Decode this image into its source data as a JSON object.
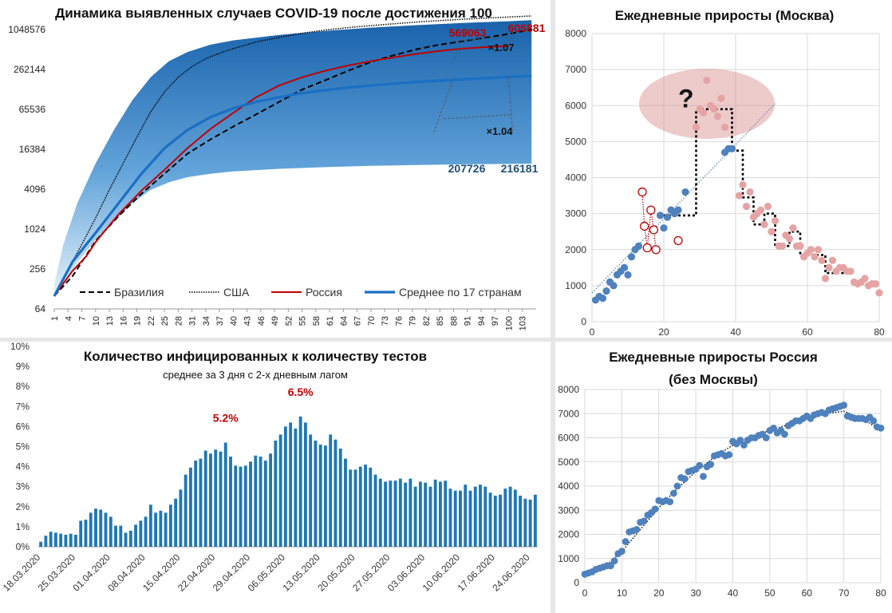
{
  "chart_data": [
    {
      "type": "line",
      "title": "Динамика выявленных случаев COVID-19 после достижения 100",
      "scale": "log2",
      "y_ticks": [
        64,
        256,
        1024,
        4096,
        16384,
        65536,
        262144,
        1048576
      ],
      "y_tick_labels": [
        "64",
        "256",
        "1024",
        "4096",
        "16384",
        "65536",
        "262144",
        "1048576"
      ],
      "x_tick_labels": [
        "1",
        "4",
        "7",
        "10",
        "13",
        "16",
        "19",
        "22",
        "25",
        "28",
        "31",
        "34",
        "37",
        "40",
        "43",
        "46",
        "49",
        "52",
        "55",
        "58",
        "61",
        "64",
        "67",
        "70",
        "73",
        "76",
        "79",
        "82",
        "85",
        "88",
        "91",
        "94",
        "97",
        "100",
        "103"
      ],
      "x_range": [
        1,
        105
      ],
      "series": [
        {
          "name": "Бразилия",
          "style": "dashed",
          "color": "#000000",
          "x": [
            1,
            5,
            10,
            15,
            20,
            25,
            30,
            35,
            40,
            45,
            50,
            55,
            60,
            65,
            70,
            75,
            80,
            85,
            90,
            95,
            100,
            105
          ],
          "y": [
            100,
            200,
            680,
            1600,
            3500,
            7000,
            14000,
            23000,
            36000,
            55000,
            85000,
            130000,
            180000,
            250000,
            340000,
            430000,
            530000,
            620000,
            700000,
            790000,
            900000,
            1050000
          ]
        },
        {
          "name": "США",
          "style": "dotted",
          "color": "#000000",
          "x": [
            1,
            4,
            7,
            10,
            13,
            16,
            19,
            22,
            25,
            28,
            31,
            34,
            37,
            40,
            45,
            50,
            55,
            60,
            65,
            70,
            75,
            80,
            85,
            90,
            95,
            100,
            105
          ],
          "y": [
            100,
            250,
            600,
            1500,
            4000,
            10000,
            25000,
            60000,
            120000,
            200000,
            290000,
            380000,
            460000,
            540000,
            680000,
            800000,
            920000,
            1030000,
            1120000,
            1200000,
            1280000,
            1360000,
            1430000,
            1500000,
            1560000,
            1620000,
            1680000
          ]
        },
        {
          "name": "Россия",
          "style": "solid",
          "color": "#c00000",
          "x": [
            1,
            5,
            8,
            10,
            15,
            20,
            25,
            30,
            35,
            40,
            45,
            50,
            55,
            60,
            65,
            70,
            75,
            80,
            85,
            90,
            95,
            100
          ],
          "y": [
            100,
            240,
            400,
            650,
            1700,
            3900,
            8000,
            17000,
            33000,
            58000,
            100000,
            150000,
            200000,
            250000,
            300000,
            350000,
            400000,
            450000,
            500000,
            540000,
            570000,
            590000
          ]
        },
        {
          "name": "Среднее по 17 странам",
          "style": "solid-thick",
          "color": "#1a6fc4",
          "x": [
            1,
            5,
            10,
            15,
            20,
            25,
            30,
            35,
            40,
            45,
            50,
            55,
            60,
            65,
            70,
            75,
            80,
            85,
            90,
            95,
            100,
            105
          ],
          "y": [
            100,
            330,
            900,
            2500,
            7000,
            17000,
            32000,
            50000,
            68000,
            85000,
            100000,
            115000,
            128000,
            140000,
            150000,
            160000,
            170000,
            178000,
            186000,
            194000,
            202000,
            210000
          ]
        }
      ],
      "band": {
        "x": [
          1,
          3,
          6,
          10,
          14,
          18,
          22,
          26,
          30,
          35,
          40,
          50,
          60,
          70,
          80,
          90,
          100,
          105
        ],
        "upper": [
          150,
          600,
          2500,
          10000,
          32000,
          90000,
          200000,
          350000,
          480000,
          620000,
          720000,
          870000,
          1000000,
          1120000,
          1220000,
          1320000,
          1400000,
          1450000
        ],
        "lower": [
          100,
          150,
          320,
          700,
          1300,
          2500,
          4000,
          5200,
          6200,
          7000,
          7600,
          8300,
          8800,
          9200,
          9500,
          9700,
          9850,
          9950
        ]
      },
      "annotations": {
        "ru_left": "569063",
        "ru_right": "606881",
        "ru_ratio": "×1.07",
        "avg_left": "207726",
        "avg_right": "216181",
        "avg_ratio": "×1.04"
      }
    },
    {
      "type": "scatter",
      "title": "Ежедневные приросты (Москва)",
      "xlim": [
        0,
        80
      ],
      "ylim": [
        0,
        8000
      ],
      "x_ticks": [
        0,
        20,
        40,
        60,
        80
      ],
      "y_ticks": [
        0,
        1000,
        2000,
        3000,
        4000,
        5000,
        6000,
        7000,
        8000
      ],
      "question_mark": "?",
      "series": [
        {
          "name": "",
          "color": "#4f81bd",
          "x": [
            1,
            2,
            3,
            4,
            5,
            6,
            7,
            8,
            9,
            10,
            11,
            12,
            13,
            19,
            20,
            21,
            22,
            23,
            24,
            26,
            37,
            38,
            39
          ],
          "y": [
            600,
            700,
            650,
            850,
            1100,
            1000,
            1300,
            1400,
            1500,
            1300,
            1800,
            2000,
            2100,
            2950,
            2600,
            2900,
            3100,
            3000,
            3100,
            3600,
            4700,
            4800,
            4800
          ]
        },
        {
          "name": "",
          "color": "#e6a3a3",
          "x": [
            29,
            30,
            31,
            32,
            33,
            34,
            35,
            36,
            37,
            41,
            42,
            43,
            44,
            45,
            46,
            47,
            48,
            49,
            50,
            51,
            52,
            53,
            54,
            55,
            56,
            57,
            58,
            59,
            60,
            61,
            62,
            63,
            64,
            65,
            66,
            67,
            68,
            69,
            70,
            71,
            72,
            73,
            74,
            75,
            76,
            77,
            78,
            79,
            80
          ],
          "y": [
            5400,
            5900,
            5800,
            6700,
            6000,
            5900,
            5700,
            6200,
            5400,
            3500,
            3800,
            3200,
            3600,
            2900,
            3000,
            3100,
            2700,
            3200,
            2500,
            2800,
            2100,
            2100,
            2400,
            2300,
            2600,
            2100,
            2100,
            1800,
            1900,
            2000,
            1800,
            2000,
            1700,
            1200,
            1500,
            1700,
            1400,
            1500,
            1500,
            1400,
            1400,
            1100,
            1050,
            1100,
            1200,
            1000,
            1050,
            1050,
            800
          ]
        },
        {
          "name": "",
          "color": "#c00000",
          "hollow": true,
          "x": [
            14,
            14.6,
            15.4,
            16.4,
            17.2,
            17.8,
            24
          ],
          "y": [
            3600,
            2650,
            2050,
            3100,
            2550,
            2000,
            2250
          ]
        }
      ],
      "step_trend": {
        "x": [
          20,
          29,
          29,
          39,
          39,
          42,
          42,
          45,
          45,
          48,
          48,
          51,
          51,
          55,
          55,
          58,
          58,
          65,
          65,
          72,
          72
        ],
        "y": [
          2950,
          2950,
          5900,
          5900,
          4750,
          4750,
          3450,
          3450,
          2700,
          2700,
          3000,
          3000,
          2100,
          2100,
          2500,
          2500,
          1850,
          1850,
          1350,
          1350,
          1350
        ]
      },
      "linear_trend": {
        "x": [
          0,
          51
        ],
        "y": [
          800,
          6050
        ]
      }
    },
    {
      "type": "bar",
      "title": "Количество инфицированных к количеству тестов",
      "subtitle": "среднее за 3 дня с 2-х дневным лагом",
      "ylim": [
        0,
        10
      ],
      "y_tick_labels": [
        "0%",
        "1%",
        "2%",
        "3%",
        "4%",
        "5%",
        "6%",
        "7%",
        "8%",
        "9%",
        "10%"
      ],
      "x_tick_labels": [
        "18.03.2020",
        "25.03.2020",
        "01.04.2020",
        "08.04.2020",
        "15.04.2020",
        "22.04.2020",
        "29.04.2020",
        "06.05.2020",
        "13.05.2020",
        "20.05.2020",
        "27.05.2020",
        "03.06.2020",
        "10.06.2020",
        "17.06.2020",
        "24.06.2020"
      ],
      "values": [
        0.25,
        0.55,
        0.75,
        0.7,
        0.65,
        0.6,
        0.65,
        0.6,
        1.3,
        1.35,
        1.7,
        1.9,
        1.85,
        1.7,
        1.5,
        1.05,
        1.05,
        0.7,
        0.8,
        1.1,
        1.3,
        1.5,
        2.1,
        1.7,
        1.8,
        1.7,
        2.1,
        2.4,
        2.85,
        3.6,
        3.95,
        4.3,
        4.4,
        4.8,
        4.65,
        4.85,
        4.75,
        5.2,
        4.5,
        4.05,
        4.0,
        4.05,
        4.25,
        4.55,
        4.5,
        4.3,
        4.65,
        5.3,
        5.6,
        6.0,
        6.2,
        5.9,
        6.5,
        6.2,
        5.6,
        5.3,
        5.1,
        5.05,
        5.6,
        5.35,
        4.9,
        4.4,
        3.85,
        3.85,
        4.0,
        4.1,
        3.95,
        3.6,
        3.4,
        3.25,
        3.3,
        3.3,
        3.4,
        3.2,
        3.4,
        3.0,
        3.25,
        3.2,
        3.0,
        3.35,
        3.25,
        3.3,
        2.9,
        2.8,
        2.8,
        3.1,
        2.8,
        3.0,
        3.1,
        3.0,
        2.7,
        2.55,
        2.6,
        2.9,
        3.0,
        2.85,
        2.55,
        2.4,
        2.35,
        2.6
      ],
      "annotations": [
        "5.2%",
        "6.5%"
      ]
    },
    {
      "type": "scatter",
      "title": "Ежедневные приросты Россия (без Москвы)",
      "title_line1": "Ежедневные приросты Россия",
      "title_line2": "(без Москвы)",
      "xlim": [
        0,
        80
      ],
      "ylim": [
        0,
        8000
      ],
      "x_ticks": [
        0,
        10,
        20,
        30,
        40,
        50,
        60,
        70,
        80
      ],
      "y_ticks": [
        0,
        1000,
        2000,
        3000,
        4000,
        5000,
        6000,
        7000,
        8000
      ],
      "series": [
        {
          "name": "",
          "color": "#4f81bd",
          "x": [
            0,
            1,
            2,
            3,
            4,
            5,
            6,
            7,
            8,
            9,
            10,
            11,
            12,
            13,
            14,
            15,
            16,
            17,
            18,
            19,
            20,
            21,
            22,
            23,
            24,
            25,
            26,
            27,
            28,
            29,
            30,
            31,
            32,
            33,
            34,
            35,
            36,
            37,
            38,
            39,
            40,
            41,
            42,
            43,
            44,
            45,
            46,
            47,
            48,
            49,
            50,
            51,
            52,
            53,
            54,
            55,
            56,
            57,
            58,
            59,
            60,
            61,
            62,
            63,
            64,
            65,
            66,
            67,
            68,
            69,
            70,
            71,
            72,
            73,
            74,
            75,
            76,
            77,
            78,
            79,
            80
          ],
          "y": [
            350,
            400,
            450,
            550,
            600,
            650,
            700,
            700,
            900,
            1200,
            1300,
            1700,
            2100,
            2150,
            2200,
            2500,
            2550,
            2800,
            2900,
            3050,
            3400,
            3350,
            3400,
            3350,
            3700,
            4000,
            4350,
            4300,
            4600,
            4650,
            4700,
            4850,
            4400,
            4800,
            4900,
            5250,
            5300,
            5350,
            5250,
            5300,
            5850,
            5750,
            5900,
            5700,
            5900,
            6000,
            6000,
            6100,
            6150,
            6000,
            6300,
            6400,
            6200,
            6300,
            6150,
            6500,
            6600,
            6700,
            6700,
            6800,
            6900,
            6800,
            6950,
            7000,
            7050,
            7000,
            7150,
            7200,
            7250,
            7300,
            7350,
            6900,
            6850,
            6800,
            6800,
            6800,
            6750,
            6850,
            6700,
            6450,
            6400
          ]
        }
      ],
      "trend": {
        "x": [
          0,
          5,
          10,
          15,
          20,
          25,
          30,
          35,
          40,
          45,
          50,
          55,
          60,
          65,
          70,
          75,
          80
        ],
        "y": [
          300,
          600,
          1300,
          2200,
          3100,
          3900,
          4600,
          5200,
          5700,
          6050,
          6300,
          6550,
          6800,
          7000,
          7100,
          6800,
          6300
        ]
      }
    }
  ]
}
